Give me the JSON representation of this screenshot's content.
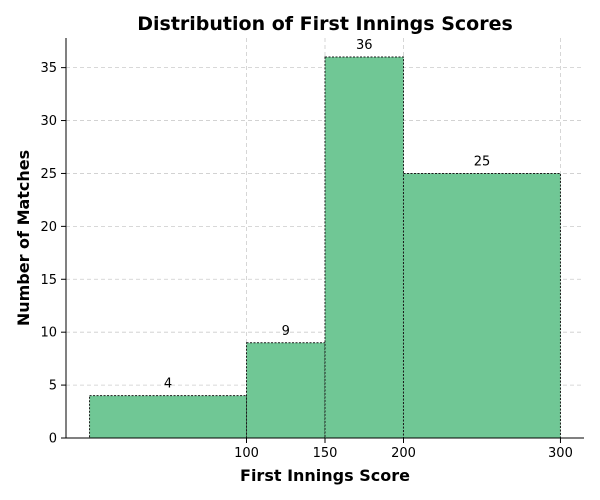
{
  "chart_data": {
    "type": "bar",
    "title": "Distribution of First Innings Scores",
    "xlabel": "First Innings Score",
    "ylabel": "Number of Matches",
    "bins": [
      {
        "start": 0,
        "end": 100,
        "value": 4,
        "label": "4"
      },
      {
        "start": 100,
        "end": 150,
        "value": 9,
        "label": "9"
      },
      {
        "start": 150,
        "end": 200,
        "value": 36,
        "label": "36"
      },
      {
        "start": 200,
        "end": 300,
        "value": 25,
        "label": "25"
      }
    ],
    "x_ticks": [
      {
        "value": 100,
        "label": "100"
      },
      {
        "value": 150,
        "label": "150"
      },
      {
        "value": 200,
        "label": "200"
      },
      {
        "value": 300,
        "label": "300"
      }
    ],
    "y_ticks": [
      {
        "value": 0,
        "label": "0"
      },
      {
        "value": 5,
        "label": "5"
      },
      {
        "value": 10,
        "label": "10"
      },
      {
        "value": 15,
        "label": "15"
      },
      {
        "value": 20,
        "label": "20"
      },
      {
        "value": 25,
        "label": "25"
      },
      {
        "value": 30,
        "label": "30"
      },
      {
        "value": 35,
        "label": "35"
      }
    ],
    "xlim": [
      -15,
      315
    ],
    "ylim": [
      0,
      37.8
    ],
    "grid": true,
    "bar_color": "#70c795"
  }
}
